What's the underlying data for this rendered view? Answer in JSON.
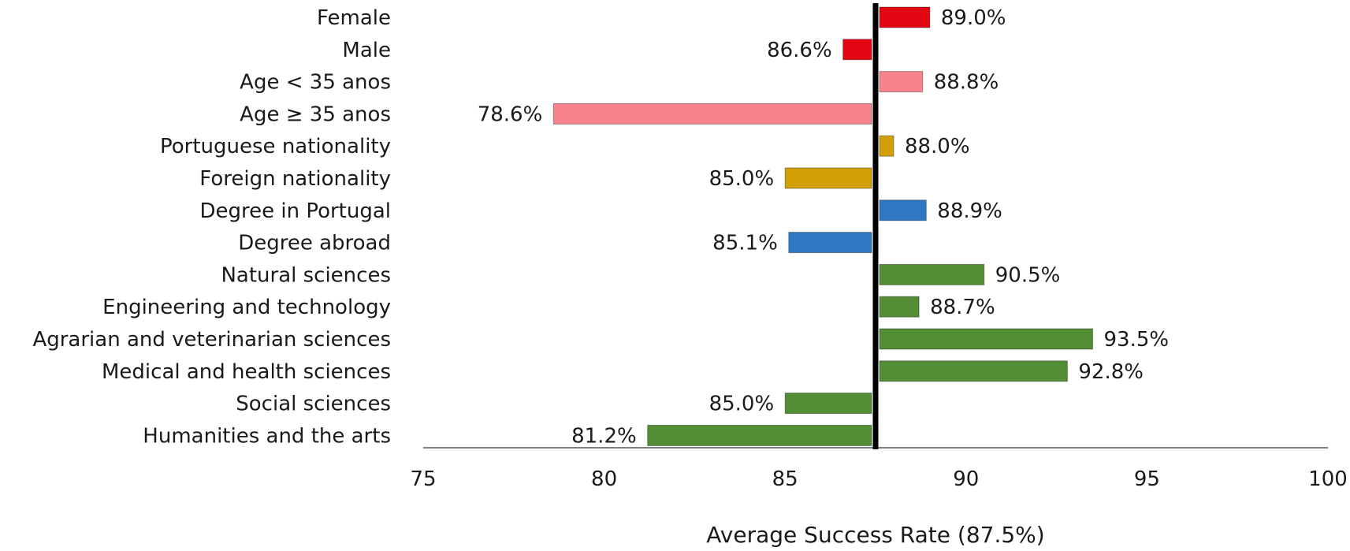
{
  "chart_data": {
    "type": "bar",
    "orientation": "horizontal",
    "reference_value": 87.5,
    "categories": [
      "Female",
      "Male",
      "Age < 35 anos",
      "Age ≥ 35 anos",
      "Portuguese nationality",
      "Foreign nationality",
      "Degree in Portugal",
      "Degree abroad",
      "Natural sciences",
      "Engineering and technology",
      "Agrarian and veterinarian sciences",
      "Medical and health sciences",
      "Social sciences",
      "Humanities and the arts"
    ],
    "values": [
      89.0,
      86.6,
      88.8,
      78.6,
      88.0,
      85.0,
      88.9,
      85.1,
      90.5,
      88.7,
      93.5,
      92.8,
      85.0,
      81.2
    ],
    "value_labels": [
      "89.0%",
      "86.6%",
      "88.8%",
      "78.6%",
      "88.0%",
      "85.0%",
      "88.9%",
      "85.1%",
      "90.5%",
      "88.7%",
      "93.5%",
      "92.8%",
      "85.0%",
      "81.2%"
    ],
    "colors": [
      "#e30613",
      "#e30613",
      "#f7848d",
      "#f7848d",
      "#d19f06",
      "#d19f06",
      "#2f79c4",
      "#2f79c4",
      "#538d35",
      "#538d35",
      "#538d35",
      "#538d35",
      "#538d35",
      "#538d35"
    ],
    "xlim": [
      75,
      100
    ],
    "xticks": [
      "75",
      "80",
      "85",
      "90",
      "95",
      "100"
    ],
    "xlabel": "Average Success Rate (87.5%)",
    "grid": false,
    "legend": "none"
  }
}
